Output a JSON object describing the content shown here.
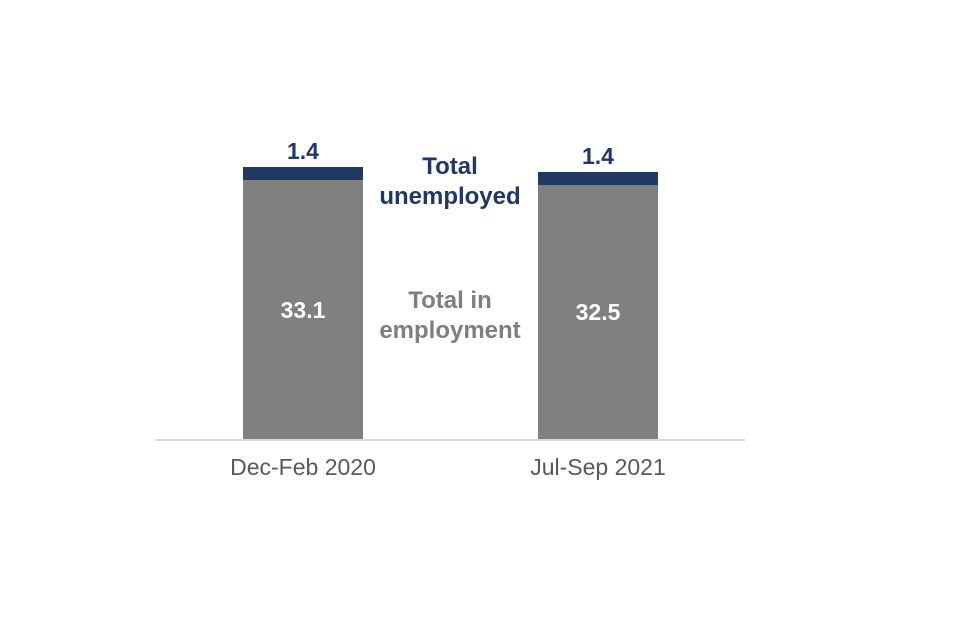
{
  "chart_data": {
    "type": "bar",
    "stacked": true,
    "categories": [
      "Dec-Feb 2020",
      "Jul-Sep 2021"
    ],
    "series": [
      {
        "name": "Total in employment",
        "values": [
          33.1,
          32.5
        ],
        "color": "#808080",
        "label_color": "#ffffff"
      },
      {
        "name": "Total unemployed",
        "values": [
          1.4,
          1.4
        ],
        "color": "#1f3864",
        "label_color": "#1f3864"
      }
    ],
    "title": "",
    "xlabel": "",
    "ylabel": "",
    "ylim": [
      0,
      35
    ],
    "grid": false,
    "legend_position": "between-bars"
  },
  "colors": {
    "employment_bar": "#808080",
    "unemployed_bar": "#1f3864",
    "axis_line": "#d9d9d9",
    "category_text": "#595959",
    "background": "#ffffff"
  }
}
